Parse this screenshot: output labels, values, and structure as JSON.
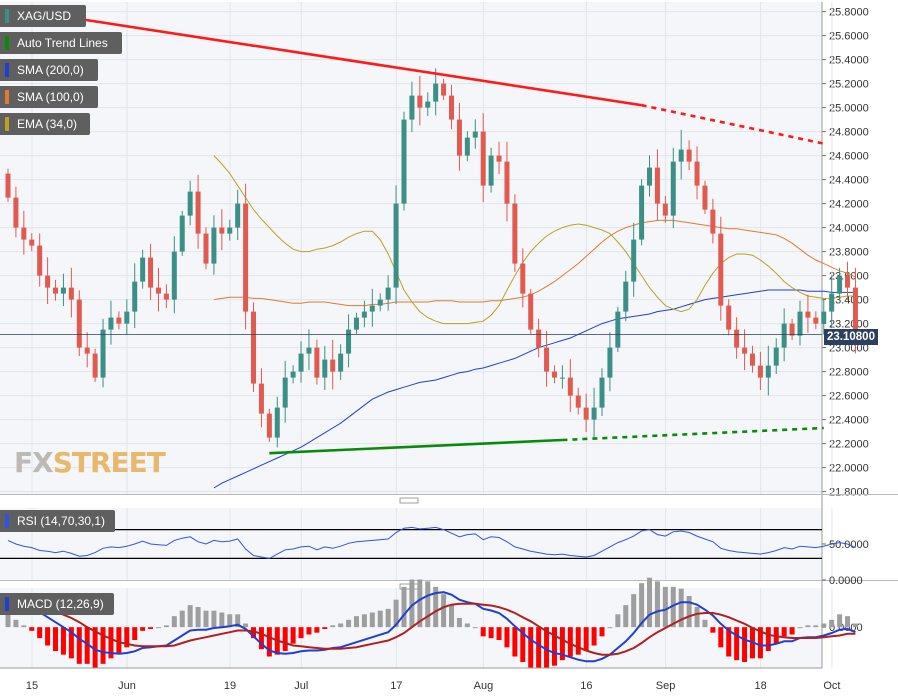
{
  "symbol": "XAG/USD",
  "colors": {
    "up": "#3c8f86",
    "down": "#e05a4f",
    "sma200": "#1f3fd0",
    "sma100": "#e07b30",
    "ema34": "#b9a420",
    "trend_down": "#ff1a1a",
    "trend_up": "#0a8a0a",
    "rsi": "#2f55e0",
    "macd": "#1f3fd0",
    "signal": "#b02020",
    "hist_neg": "#ff0000",
    "hist_pos": "#9e9e9e"
  },
  "legend": [
    {
      "label": "XAG/USD",
      "color": "#3c8f86"
    },
    {
      "label": "Auto Trend Lines",
      "color": "#0a8a0a"
    },
    {
      "label": "SMA (200,0)",
      "color": "#1f3fd0"
    },
    {
      "label": "SMA (100,0)",
      "color": "#e07b30"
    },
    {
      "label": "EMA (34,0)",
      "color": "#b9a420"
    }
  ],
  "logo": {
    "fx": "FX",
    "street": "STREET"
  },
  "last_price": "23.10800",
  "rsi_label": "RSI (14,70,30,1)",
  "macd_label": "MACD (12,26,9)",
  "chart_data": [
    {
      "type": "candlestick",
      "title": "XAG/USD",
      "x_tick_labels": [
        {
          "label": "15",
          "index": 0
        },
        {
          "label": "Jun",
          "index": 12
        },
        {
          "label": "19",
          "index": 25
        },
        {
          "label": "Jul",
          "index": 34
        },
        {
          "label": "17",
          "index": 46
        },
        {
          "label": "Aug",
          "index": 57
        },
        {
          "label": "16",
          "index": 70
        },
        {
          "label": "Sep",
          "index": 80
        },
        {
          "label": "18",
          "index": 92
        },
        {
          "label": "Oct",
          "index": 101
        }
      ],
      "y_ticks": [
        "21.8000",
        "22.0000",
        "22.2000",
        "22.4000",
        "22.6000",
        "22.8000",
        "23.0000",
        "23.2000",
        "23.4000",
        "23.6000",
        "23.8000",
        "24.0000",
        "24.2000",
        "24.4000",
        "24.6000",
        "24.8000",
        "25.0000",
        "25.2000",
        "25.4000",
        "25.6000",
        "25.8000"
      ],
      "ylim": [
        21.78,
        25.88
      ],
      "grid": true,
      "close": [
        24.25,
        24.0,
        23.9,
        23.85,
        23.6,
        23.5,
        23.45,
        23.5,
        23.4,
        23.0,
        22.95,
        22.75,
        23.15,
        23.25,
        23.2,
        23.3,
        23.55,
        23.75,
        23.5,
        23.45,
        23.4,
        23.8,
        24.1,
        24.3,
        23.95,
        23.7,
        24.0,
        23.95,
        24.0,
        24.2,
        23.3,
        22.7,
        22.45,
        22.25,
        22.5,
        22.75,
        22.8,
        22.95,
        23.0,
        22.75,
        22.9,
        22.8,
        22.95,
        23.15,
        23.25,
        23.3,
        23.35,
        23.4,
        23.5,
        24.2,
        24.9,
        25.1,
        25.0,
        25.05,
        25.2,
        25.1,
        24.9,
        24.6,
        24.75,
        24.8,
        24.35,
        24.6,
        24.55,
        24.2,
        23.7,
        23.45,
        23.15,
        23.0,
        22.8,
        22.75,
        22.75,
        22.6,
        22.5,
        22.4,
        22.5,
        22.75,
        23.0,
        23.3,
        23.55,
        23.9,
        24.35,
        24.5,
        24.2,
        24.1,
        24.55,
        24.65,
        24.55,
        24.35,
        24.15,
        23.95,
        23.35,
        23.15,
        23.0,
        22.95,
        22.85,
        22.75,
        22.85,
        23.0,
        23.2,
        23.1,
        23.3,
        23.25,
        23.2,
        23.3,
        23.45,
        23.6,
        23.5,
        23.1
      ],
      "series": [
        {
          "name": "SMA (200,0)",
          "values": [
            21.83,
            21.87,
            21.9,
            21.93,
            21.96,
            21.99,
            22.02,
            22.05,
            22.08,
            22.11,
            22.14,
            22.17,
            22.21,
            22.25,
            22.29,
            22.33,
            22.37,
            22.42,
            22.47,
            22.52,
            22.57,
            22.6,
            22.63,
            22.65,
            22.67,
            22.69,
            22.71,
            22.72,
            22.73,
            22.75,
            22.77,
            22.79,
            22.8,
            22.82,
            22.83,
            22.85,
            22.87,
            22.89,
            22.91,
            22.94,
            22.97,
            23.0,
            23.02,
            23.04,
            23.06,
            23.08,
            23.11,
            23.14,
            23.17,
            23.2,
            23.22,
            23.24,
            23.25,
            23.26,
            23.27,
            23.28,
            23.3,
            23.31,
            23.32,
            23.34,
            23.36,
            23.38,
            23.4,
            23.41,
            23.42,
            23.43,
            23.44,
            23.45,
            23.46,
            23.47,
            23.48,
            23.48,
            23.48,
            23.48,
            23.48,
            23.47,
            23.47,
            23.47,
            23.46,
            23.46,
            23.46,
            23.46
          ]
        },
        {
          "name": "SMA (100,0)",
          "values": [
            23.4,
            23.41,
            23.42,
            23.42,
            23.42,
            23.41,
            23.41,
            23.4,
            23.39,
            23.38,
            23.37,
            23.37,
            23.38,
            23.38,
            23.38,
            23.37,
            23.36,
            23.35,
            23.35,
            23.35,
            23.36,
            23.36,
            23.37,
            23.38,
            23.38,
            23.38,
            23.38,
            23.38,
            23.39,
            23.39,
            23.39,
            23.38,
            23.38,
            23.38,
            23.38,
            23.39,
            23.39,
            23.4,
            23.41,
            23.42,
            23.44,
            23.47,
            23.51,
            23.55,
            23.6,
            23.65,
            23.7,
            23.76,
            23.82,
            23.88,
            23.93,
            23.97,
            24.0,
            24.02,
            24.04,
            24.05,
            24.06,
            24.06,
            24.06,
            24.05,
            24.04,
            24.03,
            24.02,
            24.01,
            24.0,
            23.99,
            23.99,
            23.98,
            23.97,
            23.96,
            23.95,
            23.94,
            23.91,
            23.87,
            23.82,
            23.77,
            23.73,
            23.7,
            23.67,
            23.64,
            23.62,
            23.59
          ]
        },
        {
          "name": "EMA (34,0)",
          "values": [
            24.6,
            24.53,
            24.45,
            24.35,
            24.25,
            24.15,
            24.07,
            24.0,
            23.93,
            23.87,
            23.82,
            23.8,
            23.8,
            23.82,
            23.83,
            23.85,
            23.88,
            23.92,
            23.95,
            23.97,
            23.97,
            23.9,
            23.78,
            23.63,
            23.48,
            23.38,
            23.3,
            23.25,
            23.22,
            23.2,
            23.2,
            23.2,
            23.2,
            23.21,
            23.22,
            23.27,
            23.35,
            23.48,
            23.6,
            23.71,
            23.8,
            23.87,
            23.93,
            23.97,
            24.0,
            24.02,
            24.03,
            24.02,
            24.0,
            23.98,
            23.95,
            23.88,
            23.8,
            23.7,
            23.6,
            23.5,
            23.42,
            23.35,
            23.32,
            23.3,
            23.32,
            23.4,
            23.52,
            23.62,
            23.7,
            23.75,
            23.78,
            23.78,
            23.77,
            23.73,
            23.68,
            23.62,
            23.55,
            23.5,
            23.46,
            23.43,
            23.42,
            23.41,
            23.41,
            23.42,
            23.43,
            23.43
          ]
        }
      ],
      "trend_lines": [
        {
          "name": "resistance",
          "from": [
            0,
            25.83
          ],
          "to": [
            80,
            25.02
          ],
          "extend_to": [
            103,
            24.7
          ]
        },
        {
          "name": "support",
          "from": [
            33,
            22.12
          ],
          "to": [
            70,
            22.23
          ],
          "extend_to": [
            103,
            22.33
          ]
        }
      ]
    },
    {
      "type": "line",
      "title": "RSI (14,70,30,1)",
      "y_ticks": [
        "0.0000",
        "50.0000"
      ],
      "ylim": [
        0,
        100
      ],
      "levels": [
        70,
        30
      ],
      "values": [
        55,
        50,
        47,
        45,
        41,
        40,
        38,
        40,
        37,
        33,
        34,
        38,
        44,
        46,
        45,
        47,
        50,
        54,
        50,
        49,
        48,
        55,
        58,
        60,
        53,
        50,
        55,
        53,
        54,
        57,
        43,
        34,
        32,
        30,
        36,
        42,
        43,
        46,
        47,
        42,
        46,
        44,
        47,
        51,
        53,
        54,
        55,
        56,
        57,
        66,
        72,
        73,
        71,
        72,
        73,
        70,
        65,
        60,
        63,
        64,
        56,
        60,
        59,
        53,
        46,
        43,
        40,
        38,
        36,
        35,
        36,
        34,
        33,
        32,
        34,
        40,
        46,
        52,
        56,
        61,
        68,
        70,
        63,
        61,
        67,
        68,
        66,
        61,
        57,
        53,
        44,
        41,
        39,
        38,
        37,
        36,
        38,
        41,
        45,
        43,
        47,
        46,
        45,
        47,
        50,
        52,
        50,
        45
      ]
    },
    {
      "type": "bar",
      "title": "MACD (12,26,9)",
      "y_ticks": [
        "0.0000"
      ],
      "ylim": [
        -0.49,
        0.47
      ],
      "macd": [
        0.32,
        0.3,
        0.27,
        0.23,
        0.18,
        0.12,
        0.06,
        0.0,
        -0.06,
        -0.14,
        -0.2,
        -0.27,
        -0.3,
        -0.31,
        -0.32,
        -0.31,
        -0.29,
        -0.25,
        -0.24,
        -0.23,
        -0.22,
        -0.16,
        -0.1,
        -0.04,
        -0.03,
        -0.03,
        -0.01,
        0.0,
        0.01,
        0.03,
        -0.02,
        -0.11,
        -0.2,
        -0.28,
        -0.31,
        -0.32,
        -0.31,
        -0.29,
        -0.28,
        -0.28,
        -0.27,
        -0.25,
        -0.24,
        -0.21,
        -0.18,
        -0.15,
        -0.12,
        -0.09,
        -0.06,
        0.03,
        0.15,
        0.26,
        0.33,
        0.38,
        0.41,
        0.42,
        0.39,
        0.33,
        0.3,
        0.28,
        0.22,
        0.2,
        0.17,
        0.1,
        0.01,
        -0.07,
        -0.15,
        -0.21,
        -0.27,
        -0.31,
        -0.33,
        -0.36,
        -0.39,
        -0.41,
        -0.41,
        -0.38,
        -0.33,
        -0.25,
        -0.17,
        -0.07,
        0.05,
        0.15,
        0.19,
        0.21,
        0.26,
        0.3,
        0.3,
        0.27,
        0.21,
        0.14,
        0.04,
        -0.04,
        -0.1,
        -0.15,
        -0.18,
        -0.22,
        -0.22,
        -0.2,
        -0.17,
        -0.17,
        -0.13,
        -0.12,
        -0.12,
        -0.1,
        -0.07,
        -0.03,
        -0.02,
        -0.06
      ],
      "signal": [
        0.25,
        0.26,
        0.26,
        0.25,
        0.24,
        0.22,
        0.19,
        0.15,
        0.11,
        0.06,
        0.0,
        -0.05,
        -0.1,
        -0.14,
        -0.18,
        -0.2,
        -0.22,
        -0.23,
        -0.23,
        -0.23,
        -0.23,
        -0.22,
        -0.19,
        -0.16,
        -0.14,
        -0.12,
        -0.1,
        -0.08,
        -0.06,
        -0.04,
        -0.04,
        -0.05,
        -0.08,
        -0.12,
        -0.16,
        -0.19,
        -0.22,
        -0.23,
        -0.24,
        -0.25,
        -0.26,
        -0.26,
        -0.26,
        -0.25,
        -0.24,
        -0.22,
        -0.2,
        -0.18,
        -0.16,
        -0.12,
        -0.07,
        0.0,
        0.07,
        0.13,
        0.19,
        0.24,
        0.27,
        0.28,
        0.28,
        0.28,
        0.27,
        0.26,
        0.24,
        0.21,
        0.17,
        0.12,
        0.07,
        0.01,
        -0.05,
        -0.1,
        -0.15,
        -0.2,
        -0.24,
        -0.28,
        -0.31,
        -0.33,
        -0.33,
        -0.32,
        -0.29,
        -0.25,
        -0.19,
        -0.12,
        -0.06,
        -0.01,
        0.04,
        0.09,
        0.13,
        0.16,
        0.17,
        0.17,
        0.15,
        0.12,
        0.08,
        0.04,
        -0.01,
        -0.05,
        -0.09,
        -0.11,
        -0.12,
        -0.13,
        -0.13,
        -0.13,
        -0.13,
        -0.12,
        -0.11,
        -0.1,
        -0.08,
        -0.08
      ]
    }
  ]
}
